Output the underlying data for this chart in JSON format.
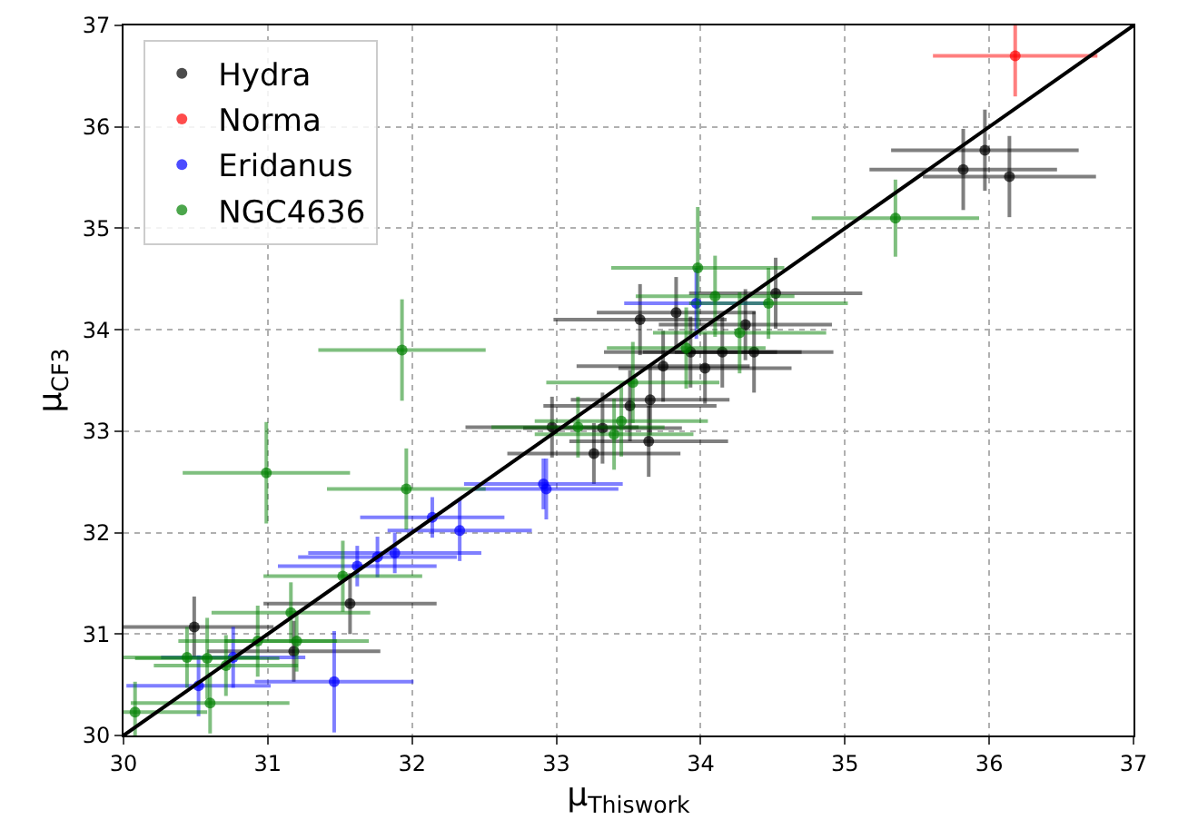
{
  "chart_data": {
    "type": "scatter",
    "xlabel": "μ$_{Thiswork}$",
    "ylabel": "μ$_{CF3}$",
    "xlim": [
      30,
      37
    ],
    "ylim": [
      30,
      37
    ],
    "xticks": [
      30,
      31,
      32,
      33,
      34,
      35,
      36,
      37
    ],
    "yticks": [
      30,
      31,
      32,
      33,
      34,
      35,
      36,
      37
    ],
    "grid": true,
    "legend": "top left",
    "marker": "circle",
    "series": [
      {
        "name": "Hydra",
        "color": "#000000",
        "x": [
          30.49,
          31.57,
          31.18,
          33.58,
          33.83,
          33.74,
          33.51,
          33.65,
          32.97,
          33.32,
          33.26,
          33.64,
          34.52,
          34.31,
          34.15,
          34.37,
          34.03,
          33.93,
          35.97,
          35.82,
          36.14
        ],
        "values": [
          31.07,
          31.3,
          30.83,
          34.1,
          34.17,
          33.64,
          33.25,
          33.31,
          33.04,
          33.03,
          32.78,
          32.9,
          34.36,
          34.05,
          33.78,
          33.78,
          33.62,
          33.78,
          35.77,
          35.58,
          35.51
        ],
        "xerrors": [
          0.55,
          0.6,
          0.6,
          0.6,
          0.55,
          0.6,
          0.6,
          0.55,
          0.6,
          0.55,
          0.6,
          0.55,
          0.6,
          0.6,
          0.55,
          0.55,
          0.6,
          0.6,
          0.65,
          0.65,
          0.6
        ],
        "errors": [
          0.3,
          0.3,
          0.3,
          0.35,
          0.35,
          0.35,
          0.35,
          0.35,
          0.3,
          0.35,
          0.3,
          0.35,
          0.35,
          0.35,
          0.35,
          0.4,
          0.35,
          0.35,
          0.4,
          0.4,
          0.4
        ]
      },
      {
        "name": "Norma",
        "color": "#ff0000",
        "x": [
          36.18
        ],
        "values": [
          36.7
        ],
        "xerrors": [
          0.57
        ],
        "errors": [
          0.4
        ]
      },
      {
        "name": "Eridanus",
        "color": "#0000ff",
        "x": [
          32.14,
          32.33,
          31.88,
          31.76,
          31.62,
          30.76,
          30.52,
          31.46,
          32.91,
          32.93,
          33.97
        ],
        "values": [
          32.15,
          32.02,
          31.8,
          31.76,
          31.67,
          30.77,
          30.49,
          30.53,
          32.48,
          32.43,
          34.26
        ],
        "xerrors": [
          0.5,
          0.5,
          0.6,
          0.55,
          0.55,
          0.5,
          0.5,
          0.55,
          0.55,
          0.5,
          0.5
        ],
        "errors": [
          0.2,
          0.3,
          0.2,
          0.2,
          0.2,
          0.3,
          0.3,
          0.5,
          0.25,
          0.3,
          0.35
        ]
      },
      {
        "name": "NGC4636",
        "color": "#008000",
        "x": [
          31.93,
          30.99,
          31.96,
          31.52,
          31.16,
          30.44,
          30.58,
          30.71,
          30.93,
          31.2,
          30.6,
          30.08,
          33.98,
          34.1,
          34.47,
          34.27,
          33.9,
          33.53,
          33.15,
          33.45,
          33.4,
          35.35
        ],
        "values": [
          33.8,
          32.59,
          32.43,
          31.57,
          31.21,
          30.77,
          30.76,
          30.69,
          30.93,
          30.93,
          30.32,
          30.23,
          34.61,
          34.33,
          34.26,
          33.97,
          33.82,
          33.48,
          33.04,
          33.1,
          32.97,
          35.1
        ],
        "xerrors": [
          0.58,
          0.58,
          0.55,
          0.55,
          0.55,
          0.5,
          0.5,
          0.5,
          0.55,
          0.5,
          0.55,
          0.5,
          0.6,
          0.55,
          0.55,
          0.6,
          0.55,
          0.6,
          0.6,
          0.6,
          0.55,
          0.58
        ],
        "errors": [
          0.5,
          0.5,
          0.4,
          0.35,
          0.3,
          0.3,
          0.4,
          0.3,
          0.35,
          0.3,
          0.3,
          0.3,
          0.6,
          0.4,
          0.35,
          0.4,
          0.4,
          0.4,
          0.3,
          0.35,
          0.35,
          0.38
        ]
      },
      {
        "type": "line",
        "color": "#000000",
        "marker": "none",
        "x": [
          30,
          37
        ],
        "values": [
          30,
          37
        ]
      }
    ]
  }
}
